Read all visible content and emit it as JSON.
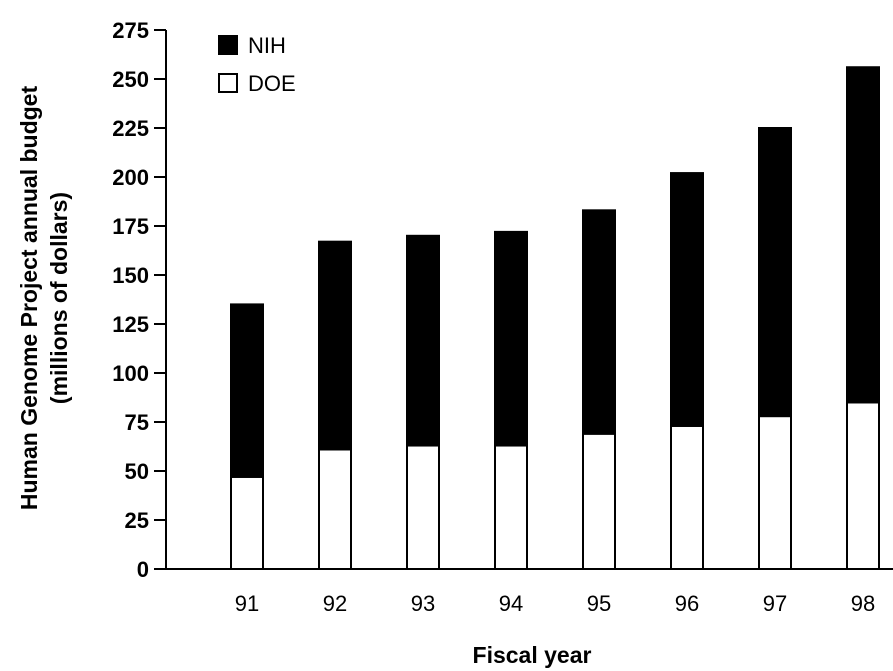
{
  "chart_data": {
    "type": "bar",
    "stacked": true,
    "categories": [
      "91",
      "92",
      "93",
      "94",
      "95",
      "96",
      "97",
      "98"
    ],
    "series": [
      {
        "name": "DOE",
        "color": "#ffffff",
        "values": [
          47,
          61,
          63,
          63,
          69,
          73,
          78,
          85
        ]
      },
      {
        "name": "NIH",
        "color": "#000000",
        "values": [
          88,
          106,
          107,
          109,
          114,
          129,
          147,
          171
        ]
      }
    ],
    "totals": [
      135,
      167,
      170,
      172,
      183,
      202,
      225,
      256
    ],
    "yticks": [
      0,
      25,
      50,
      75,
      100,
      125,
      150,
      175,
      200,
      225,
      250,
      275
    ],
    "ylim": [
      0,
      275
    ],
    "ylabel_line1": "Human Genome Project annual budget",
    "ylabel_line2": "(millions of dollars)",
    "xlabel": "Fiscal year",
    "grid": false,
    "legend": {
      "position": "top-left",
      "items": [
        {
          "label": "NIH",
          "color": "#000000"
        },
        {
          "label": "DOE",
          "color": "#ffffff"
        }
      ]
    }
  }
}
